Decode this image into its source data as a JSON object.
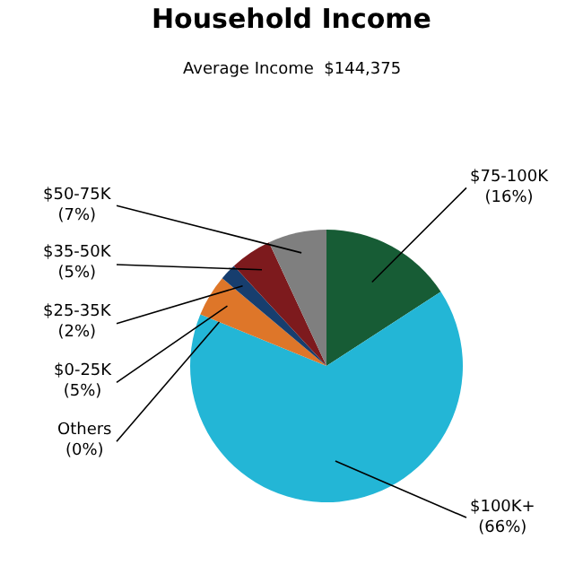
{
  "chart_data": {
    "type": "pie",
    "title": "Household Income",
    "subtitle": "Average Income  $144,375",
    "categories": [
      "$75-100K",
      "$100K+",
      "Others",
      "$0-25K",
      "$25-35K",
      "$35-50K",
      "$50-75K"
    ],
    "values": [
      16,
      66,
      0,
      5,
      2,
      5,
      7
    ],
    "value_labels": [
      "(16%)",
      "(66%)",
      "(0%)",
      "(5%)",
      "(2%)",
      "(5%)",
      "(7%)"
    ],
    "colors": [
      "#175c35",
      "#23b6d6",
      "#999999",
      "#de7629",
      "#173e6e",
      "#7d1a1d",
      "#7f7f7f"
    ],
    "legend": false
  }
}
